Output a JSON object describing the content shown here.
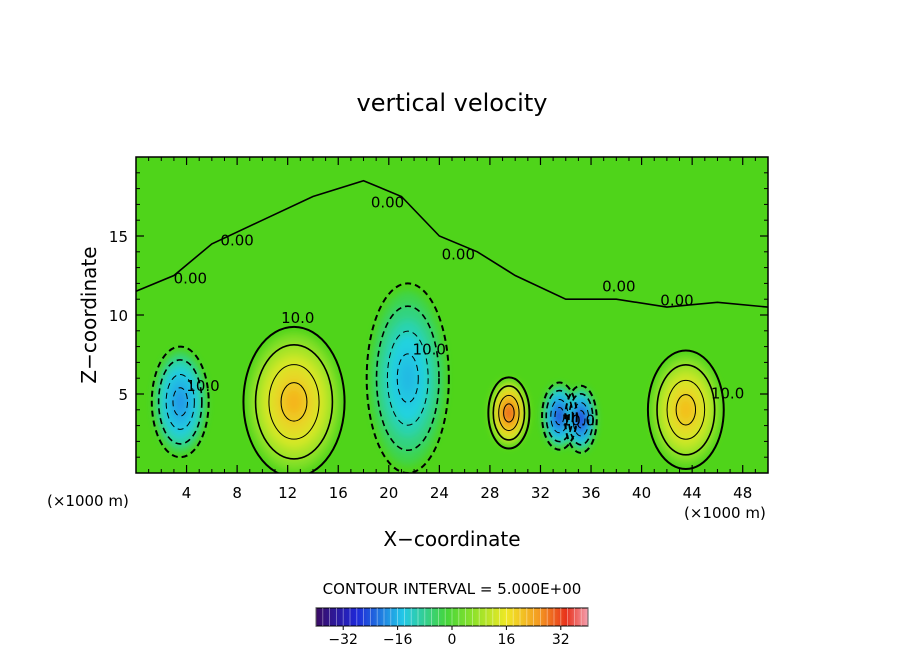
{
  "chart_data": {
    "type": "heatmap",
    "title": "vertical velocity",
    "xlabel": "X−coordinate",
    "ylabel": "Z−coordinate",
    "x_unit": "(×1000 m)",
    "z_unit": "(×1000 m)",
    "xlim": [
      0,
      50
    ],
    "ylim": [
      0,
      20
    ],
    "x_ticks": [
      4,
      8,
      12,
      16,
      20,
      24,
      28,
      32,
      36,
      40,
      44,
      48
    ],
    "y_ticks": [
      5,
      10,
      15
    ],
    "contour_interval_text": "CONTOUR INTERVAL = 5.000E+00",
    "contour_labels": [
      {
        "text": "0.00",
        "x": 4.3,
        "z": 12.0
      },
      {
        "text": "0.00",
        "x": 8.0,
        "z": 14.4
      },
      {
        "text": "0.00",
        "x": 19.9,
        "z": 16.8
      },
      {
        "text": "0.00",
        "x": 25.5,
        "z": 13.5
      },
      {
        "text": "0.00",
        "x": 38.2,
        "z": 11.5
      },
      {
        "text": "0.00",
        "x": 42.8,
        "z": 10.6
      },
      {
        "text": "10.0",
        "x": 12.8,
        "z": 9.5
      },
      {
        "text": "10.0",
        "x": 23.2,
        "z": 7.5
      },
      {
        "text": "10.0",
        "x": 5.3,
        "z": 5.2
      },
      {
        "text": "10.0",
        "x": 35.0,
        "z": 3.0
      },
      {
        "text": "10.0",
        "x": 46.8,
        "z": 4.7
      }
    ],
    "cells": [
      {
        "x": 3.5,
        "z": 4.5,
        "value": -18,
        "sx": 1.8,
        "sz": 2.8
      },
      {
        "x": 12.5,
        "z": 4.5,
        "value": 19,
        "sx": 3.2,
        "sz": 3.8
      },
      {
        "x": 21.5,
        "z": 6.0,
        "value": -12,
        "sx": 2.6,
        "sz": 4.8
      },
      {
        "x": 29.5,
        "z": 3.8,
        "value": 30,
        "sx": 1.3,
        "sz": 1.8
      },
      {
        "x": 33.5,
        "z": 3.6,
        "value": -28,
        "sx": 1.1,
        "sz": 1.7
      },
      {
        "x": 35.2,
        "z": 3.4,
        "value": -30,
        "sx": 1.0,
        "sz": 1.7
      },
      {
        "x": 43.5,
        "z": 4.0,
        "value": 18,
        "sx": 2.4,
        "sz": 3.0
      }
    ],
    "colorbar": {
      "ticks": [
        -32,
        -16,
        0,
        16,
        32
      ],
      "range": [
        -40,
        40
      ]
    },
    "colors": {
      "background_field": "#4fd41a",
      "contour": "#000000"
    }
  }
}
